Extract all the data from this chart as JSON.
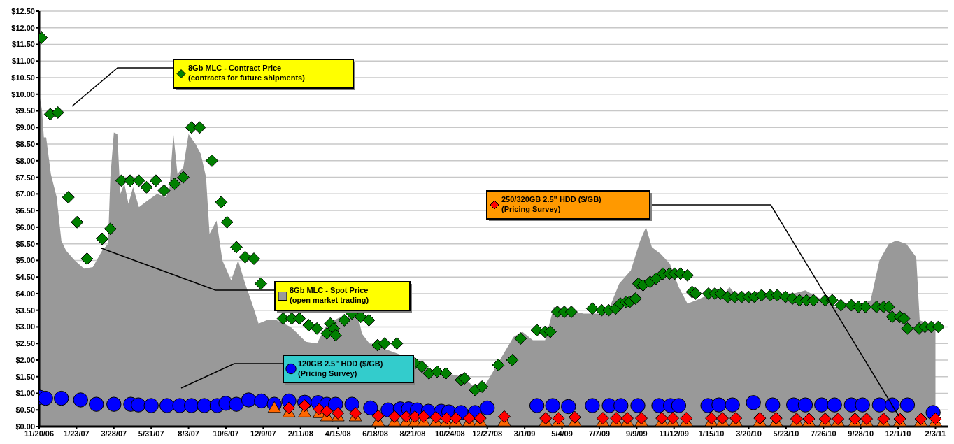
{
  "chart_data": {
    "type": "scatter",
    "grid": "y",
    "legend": "bottom left",
    "ylim": [
      0,
      12.5
    ],
    "yticks": [
      {
        "value": 0,
        "label": "$0.00"
      },
      {
        "value": 0.5,
        "label": "$0.50"
      },
      {
        "value": 1,
        "label": "$1.00"
      },
      {
        "value": 1.5,
        "label": "$1.50"
      },
      {
        "value": 2,
        "label": "$2.00"
      },
      {
        "value": 2.5,
        "label": "$2.50"
      },
      {
        "value": 3,
        "label": "$3.00"
      },
      {
        "value": 3.5,
        "label": "$3.50"
      },
      {
        "value": 4,
        "label": "$4.00"
      },
      {
        "value": 4.5,
        "label": "$4.50"
      },
      {
        "value": 5,
        "label": "$5.00"
      },
      {
        "value": 5.5,
        "label": "$5.50"
      },
      {
        "value": 6,
        "label": "$6.00"
      },
      {
        "value": 6.5,
        "label": "$6.50"
      },
      {
        "value": 7,
        "label": "$7.00"
      },
      {
        "value": 7.5,
        "label": "$7.50"
      },
      {
        "value": 8,
        "label": "$8.00"
      },
      {
        "value": 8.5,
        "label": "$8.50"
      },
      {
        "value": 9,
        "label": "$9.00"
      },
      {
        "value": 9.5,
        "label": "$9.50"
      },
      {
        "value": 10,
        "label": "$10.00"
      },
      {
        "value": 10.5,
        "label": "$10.50"
      },
      {
        "value": 11,
        "label": "$11.00"
      },
      {
        "value": 11.5,
        "label": "$11.50"
      },
      {
        "value": 12,
        "label": "$12.00"
      },
      {
        "value": 12.5,
        "label": "$12.50"
      }
    ],
    "xlim": [
      "2006-11-20",
      "2011-02-24"
    ],
    "xticks": [
      {
        "value": "2006-11-20",
        "label": "11/20/06"
      },
      {
        "value": "2007-01-23",
        "label": "1/23/07"
      },
      {
        "value": "2007-03-28",
        "label": "3/28/07"
      },
      {
        "value": "2007-05-31",
        "label": "5/31/07"
      },
      {
        "value": "2007-08-03",
        "label": "8/3/07"
      },
      {
        "value": "2007-10-06",
        "label": "10/6/07"
      },
      {
        "value": "2007-12-09",
        "label": "12/9/07"
      },
      {
        "value": "2008-02-11",
        "label": "2/11/08"
      },
      {
        "value": "2008-04-15",
        "label": "4/15/08"
      },
      {
        "value": "2008-06-18",
        "label": "6/18/08"
      },
      {
        "value": "2008-08-21",
        "label": "8/21/08"
      },
      {
        "value": "2008-10-24",
        "label": "10/24/08"
      },
      {
        "value": "2008-12-27",
        "label": "12/27/08"
      },
      {
        "value": "2009-03-01",
        "label": "3/1/09"
      },
      {
        "value": "2009-05-04",
        "label": "5/4/09"
      },
      {
        "value": "2009-07-07",
        "label": "7/7/09"
      },
      {
        "value": "2009-09-09",
        "label": "9/9/09"
      },
      {
        "value": "2009-11-12",
        "label": "11/12/09"
      },
      {
        "value": "2010-01-15",
        "label": "1/15/10"
      },
      {
        "value": "2010-03-20",
        "label": "3/20/10"
      },
      {
        "value": "2010-05-23",
        "label": "5/23/10"
      },
      {
        "value": "2010-07-26",
        "label": "7/26/10"
      },
      {
        "value": "2010-09-28",
        "label": "9/28/10"
      },
      {
        "value": "2010-12-01",
        "label": "12/1/10"
      },
      {
        "value": "2011-02-03",
        "label": "2/3/11"
      }
    ],
    "series": [
      {
        "name": "8Gb MLC - Spot Price (open market trading)",
        "type": "area",
        "color": "#999999",
        "x": [
          "2006-11-20",
          "2006-11-25",
          "2006-11-28",
          "2006-12-02",
          "2006-12-10",
          "2006-12-20",
          "2006-12-28",
          "2007-01-05",
          "2007-01-20",
          "2007-02-05",
          "2007-02-20",
          "2007-03-08",
          "2007-03-18",
          "2007-03-22",
          "2007-03-28",
          "2007-04-03",
          "2007-04-08",
          "2007-04-15",
          "2007-04-22",
          "2007-04-30",
          "2007-05-10",
          "2007-05-25",
          "2007-06-10",
          "2007-06-25",
          "2007-07-01",
          "2007-07-08",
          "2007-07-15",
          "2007-07-25",
          "2007-08-03",
          "2007-08-09",
          "2007-08-15",
          "2007-08-24",
          "2007-09-02",
          "2007-09-08",
          "2007-09-20",
          "2007-09-30",
          "2007-10-15",
          "2007-10-27",
          "2007-11-08",
          "2007-11-20",
          "2007-12-01",
          "2007-12-15",
          "2008-01-01",
          "2008-01-25",
          "2008-02-20",
          "2008-03-10",
          "2008-03-28",
          "2008-04-20",
          "2008-05-20",
          "2008-05-26",
          "2008-06-08",
          "2008-07-10",
          "2008-08-25",
          "2008-09-20",
          "2008-10-15",
          "2008-11-15",
          "2008-12-10",
          "2008-12-25",
          "2009-01-15",
          "2009-02-10",
          "2009-02-25",
          "2009-03-15",
          "2009-04-05",
          "2009-04-20",
          "2009-05-15",
          "2009-06-10",
          "2009-07-10",
          "2009-07-25",
          "2009-08-10",
          "2009-08-30",
          "2009-09-15",
          "2009-09-25",
          "2009-10-05",
          "2009-10-20",
          "2009-11-05",
          "2009-11-20",
          "2009-12-05",
          "2009-12-20",
          "2010-01-15",
          "2010-02-01",
          "2010-02-15",
          "2010-03-01",
          "2010-04-01",
          "2010-05-15",
          "2010-06-25",
          "2010-07-15",
          "2010-08-15",
          "2010-09-20",
          "2010-10-15",
          "2010-10-30",
          "2010-11-15",
          "2010-11-28",
          "2010-12-15",
          "2011-01-01",
          "2011-01-07",
          "2011-01-15",
          "2011-02-03"
        ],
        "values": [
          10.0,
          9.5,
          8.7,
          8.7,
          7.6,
          6.9,
          5.6,
          5.3,
          5.0,
          4.75,
          4.8,
          5.3,
          5.5,
          7.5,
          8.85,
          8.8,
          7.0,
          7.3,
          6.7,
          7.2,
          6.6,
          6.8,
          7.0,
          6.9,
          7.1,
          8.8,
          7.6,
          7.8,
          8.8,
          null,
          8.5,
          8.2,
          7.5,
          5.8,
          6.2,
          5.0,
          4.4,
          5.0,
          4.3,
          3.7,
          3.1,
          3.2,
          3.2,
          3.0,
          2.55,
          2.5,
          3.1,
          3.3,
          3.3,
          2.8,
          2.5,
          2.3,
          2.0,
          1.7,
          null,
          1.5,
          1.1,
          1.3,
          null,
          2.7,
          2.85,
          2.6,
          2.6,
          3.6,
          3.5,
          3.4,
          3.4,
          3.6,
          4.3,
          4.7,
          5.6,
          6.0,
          5.4,
          5.2,
          4.9,
          4.2,
          3.7,
          3.8,
          4.0,
          3.85,
          4.2,
          3.9,
          null,
          3.9,
          4.1,
          3.9,
          3.6,
          3.6,
          3.8,
          5.0,
          5.5,
          5.6,
          5.5,
          5.1,
          3.2,
          null,
          3.0
        ]
      },
      {
        "name": "8Gb MLC - Contract Price (contracts for future shipments)",
        "marker": "diamond",
        "color": "#008000",
        "x": [
          "2006-11-24",
          "2006-12-09",
          "2006-12-22",
          "2007-01-09",
          "2007-01-24",
          "2007-02-10",
          "2007-03-08",
          "2007-03-22",
          "2007-04-10",
          "2007-04-25",
          "2007-05-10",
          "2007-05-23",
          "2007-06-08",
          "2007-06-22",
          "2007-07-10",
          "2007-07-25",
          "2007-08-08",
          "2007-08-22",
          "2007-09-12",
          "2007-09-28",
          "2007-10-08",
          "2007-10-24",
          "2007-11-08",
          "2007-11-23",
          "2007-12-05",
          "2008-01-12",
          "2008-01-27",
          "2008-02-09",
          "2008-02-25",
          "2008-03-10",
          "2008-03-27",
          "2008-04-02",
          "2008-04-08",
          "2008-04-11",
          "2008-04-26",
          "2008-05-09",
          "2008-05-24",
          "2008-06-07",
          "2008-06-22",
          "2008-07-04",
          "2008-07-25",
          "2008-08-25",
          "2008-09-06",
          "2008-09-18",
          "2008-10-02",
          "2008-10-17",
          "2008-11-12",
          "2008-11-18",
          "2008-12-06",
          "2008-12-18",
          "2009-01-15",
          "2009-02-08",
          "2009-02-22",
          "2009-03-22",
          "2009-04-05",
          "2009-04-14",
          "2009-04-26",
          "2009-05-08",
          "2009-05-20",
          "2009-06-25",
          "2009-07-11",
          "2009-07-23",
          "2009-08-04",
          "2009-08-12",
          "2009-08-22",
          "2009-08-28",
          "2009-09-07",
          "2009-09-12",
          "2009-09-20",
          "2009-10-02",
          "2009-10-12",
          "2009-10-24",
          "2009-11-04",
          "2009-11-13",
          "2009-11-23",
          "2009-12-05",
          "2009-12-13",
          "2009-12-19",
          "2010-01-10",
          "2010-01-21",
          "2010-01-31",
          "2010-02-12",
          "2010-02-24",
          "2010-03-08",
          "2010-03-20",
          "2010-03-30",
          "2010-04-11",
          "2010-04-26",
          "2010-05-08",
          "2010-05-22",
          "2010-06-03",
          "2010-06-15",
          "2010-06-27",
          "2010-07-09",
          "2010-07-29",
          "2010-08-10",
          "2010-08-25",
          "2010-09-12",
          "2010-09-24",
          "2010-10-06",
          "2010-10-25",
          "2010-11-06",
          "2010-11-15",
          "2010-11-21",
          "2010-12-04",
          "2010-12-11",
          "2010-12-17",
          "2011-01-06",
          "2011-01-16",
          "2011-01-27",
          "2011-02-08"
        ],
        "values": [
          11.7,
          9.4,
          9.45,
          6.9,
          6.15,
          5.05,
          5.65,
          5.95,
          7.4,
          7.4,
          7.4,
          7.2,
          7.4,
          7.1,
          7.3,
          7.5,
          9.0,
          9.0,
          8.0,
          6.75,
          6.15,
          5.4,
          5.1,
          5.05,
          4.3,
          3.25,
          3.25,
          3.25,
          3.05,
          2.95,
          2.8,
          3.1,
          2.95,
          2.75,
          3.2,
          3.4,
          3.3,
          3.2,
          2.45,
          2.5,
          2.5,
          1.9,
          1.8,
          1.6,
          1.65,
          1.6,
          1.4,
          1.45,
          1.1,
          1.2,
          1.85,
          2.0,
          2.65,
          2.9,
          2.85,
          2.85,
          3.45,
          3.45,
          3.45,
          3.55,
          3.5,
          3.5,
          3.55,
          3.7,
          3.75,
          3.75,
          3.85,
          4.3,
          4.25,
          4.35,
          4.45,
          4.6,
          4.6,
          4.6,
          4.6,
          4.55,
          4.05,
          4.0,
          4.0,
          4.0,
          4.0,
          3.9,
          3.9,
          3.9,
          3.9,
          3.9,
          3.95,
          3.95,
          3.95,
          3.9,
          3.85,
          3.8,
          3.8,
          3.8,
          3.8,
          3.8,
          3.65,
          3.65,
          3.6,
          3.6,
          3.6,
          3.6,
          3.6,
          3.3,
          3.3,
          3.25,
          2.95,
          2.95,
          3.0,
          3.0,
          3.0
        ]
      },
      {
        "name": "120GB 2.5\" HDD ($/GB) (Pricing Survey)",
        "marker": "circle",
        "color": "#0000ff",
        "x": [
          "2006-11-21",
          "2006-12-01",
          "2006-12-28",
          "2007-01-30",
          "2007-02-26",
          "2007-03-28",
          "2007-04-26",
          "2007-05-09",
          "2007-05-31",
          "2007-06-27",
          "2007-07-19",
          "2007-08-08",
          "2007-08-30",
          "2007-09-21",
          "2007-10-06",
          "2007-10-24",
          "2007-11-14",
          "2007-12-06",
          "2007-12-28",
          "2008-01-22",
          "2008-02-18",
          "2008-03-12",
          "2008-03-27",
          "2008-04-11",
          "2008-05-09",
          "2008-06-10",
          "2008-07-10",
          "2008-07-31",
          "2008-08-14",
          "2008-08-29",
          "2008-09-17",
          "2008-10-09",
          "2008-10-22",
          "2008-11-12",
          "2008-12-06",
          "2008-12-27",
          "2009-03-22",
          "2009-04-18",
          "2009-05-15",
          "2009-06-25",
          "2009-07-24",
          "2009-08-13",
          "2009-09-11",
          "2009-10-17",
          "2009-11-06",
          "2009-11-20",
          "2010-01-09",
          "2010-01-28",
          "2010-02-20",
          "2010-03-28",
          "2010-04-30",
          "2010-06-05",
          "2010-06-25",
          "2010-07-23",
          "2010-08-14",
          "2010-09-12",
          "2010-10-01",
          "2010-10-30",
          "2010-11-21",
          "2010-12-17",
          "2011-01-30"
        ],
        "values": [
          0.88,
          0.85,
          0.85,
          0.8,
          0.67,
          0.67,
          0.67,
          0.65,
          0.63,
          0.63,
          0.63,
          0.63,
          0.63,
          0.63,
          0.7,
          0.67,
          0.8,
          0.77,
          0.67,
          0.77,
          0.73,
          0.72,
          0.67,
          0.67,
          0.67,
          0.56,
          0.5,
          0.53,
          0.53,
          0.5,
          0.46,
          0.46,
          0.44,
          0.42,
          0.42,
          0.56,
          0.63,
          0.63,
          0.6,
          0.63,
          0.63,
          0.63,
          0.63,
          0.63,
          0.63,
          0.63,
          0.63,
          0.65,
          0.65,
          0.72,
          0.65,
          0.65,
          0.65,
          0.65,
          0.65,
          0.65,
          0.65,
          0.65,
          0.65,
          0.65,
          0.42
        ]
      },
      {
        "marker": "triangle",
        "color": "#ff6600",
        "x": [
          "2007-12-28",
          "2008-01-22",
          "2008-02-18",
          "2008-03-14",
          "2008-03-27",
          "2008-04-15",
          "2008-05-15",
          "2008-06-23",
          "2008-07-21",
          "2008-08-10",
          "2008-08-25",
          "2008-09-09",
          "2008-09-30",
          "2008-10-18",
          "2008-11-03",
          "2008-11-26",
          "2008-12-15",
          "2009-01-25",
          "2009-04-06",
          "2009-04-28",
          "2009-05-26",
          "2009-07-13",
          "2009-08-05",
          "2009-08-24",
          "2009-09-17",
          "2009-10-22",
          "2009-11-10",
          "2009-12-03",
          "2010-01-15",
          "2010-02-03",
          "2010-02-26",
          "2010-04-08",
          "2010-05-06",
          "2010-06-10",
          "2010-07-01",
          "2010-07-29",
          "2010-08-20",
          "2010-09-18",
          "2010-10-08",
          "2010-11-06",
          "2010-12-04",
          "2011-01-09",
          "2011-02-03"
        ],
        "values": [
          0.56,
          0.42,
          0.42,
          0.4,
          0.3,
          0.3,
          0.3,
          0.15,
          0.15,
          0.15,
          0.15,
          0.15,
          0.15,
          0.15,
          0.15,
          0.15,
          0.15,
          0.15,
          0.15,
          0.15,
          0.15,
          0.15,
          0.15,
          0.15,
          0.15,
          0.15,
          0.15,
          0.15,
          0.15,
          0.15,
          0.15,
          0.15,
          0.15,
          0.15,
          0.15,
          0.15,
          0.15,
          0.15,
          0.15,
          0.15,
          0.15,
          0.15,
          0.15
        ]
      },
      {
        "name": "250/320GB 2.5\" HDD ($/GB) (Pricing Survey)",
        "marker": "diamond",
        "color": "#ff0000",
        "x": [
          "2008-01-22",
          "2008-02-18",
          "2008-03-14",
          "2008-03-27",
          "2008-04-15",
          "2008-05-15",
          "2008-06-23",
          "2008-07-21",
          "2008-08-10",
          "2008-08-25",
          "2008-09-09",
          "2008-09-30",
          "2008-10-18",
          "2008-11-03",
          "2008-11-26",
          "2008-12-15",
          "2009-01-25",
          "2009-04-06",
          "2009-04-28",
          "2009-05-26",
          "2009-07-13",
          "2009-08-05",
          "2009-08-24",
          "2009-09-17",
          "2009-10-22",
          "2009-11-10",
          "2009-12-03",
          "2010-01-15",
          "2010-02-03",
          "2010-02-26",
          "2010-04-08",
          "2010-05-06",
          "2010-06-10",
          "2010-07-01",
          "2010-07-29",
          "2010-08-20",
          "2010-09-18",
          "2010-10-08",
          "2010-11-06",
          "2010-12-04",
          "2011-01-09",
          "2011-02-03"
        ],
        "values": [
          0.56,
          0.63,
          0.52,
          0.46,
          0.4,
          0.4,
          0.32,
          0.3,
          0.3,
          0.3,
          0.3,
          0.28,
          0.25,
          0.25,
          0.25,
          0.25,
          0.3,
          0.25,
          0.25,
          0.28,
          0.25,
          0.25,
          0.25,
          0.25,
          0.25,
          0.25,
          0.25,
          0.25,
          0.25,
          0.25,
          0.25,
          0.25,
          0.23,
          0.23,
          0.23,
          0.23,
          0.23,
          0.23,
          0.23,
          0.23,
          0.23,
          0.23
        ]
      }
    ]
  }
}
